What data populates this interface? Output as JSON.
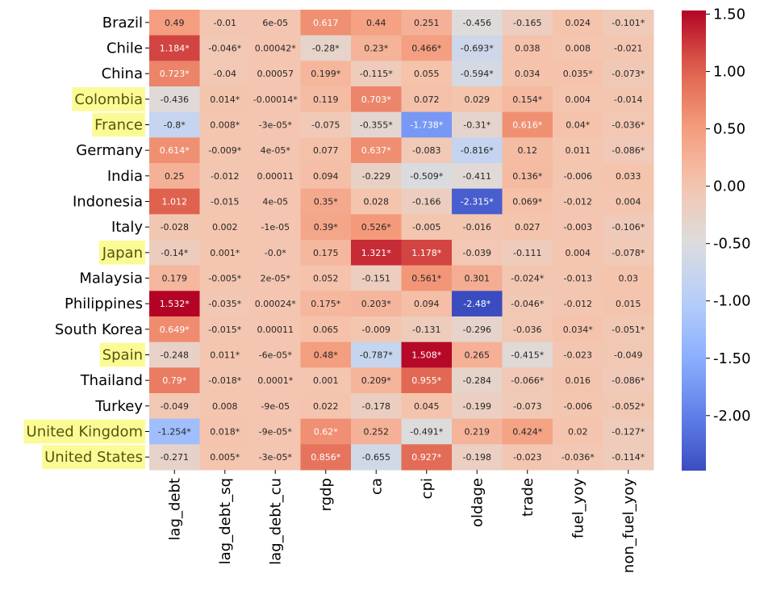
{
  "chart_data": {
    "type": "heatmap",
    "rows": [
      "Brazil",
      "Chile",
      "China",
      "Colombia",
      "France",
      "Germany",
      "India",
      "Indonesia",
      "Italy",
      "Japan",
      "Malaysia",
      "Philippines",
      "South Korea",
      "Spain",
      "Thailand",
      "Turkey",
      "United Kingdom",
      "United States"
    ],
    "columns": [
      "lag_debt",
      "lag_debt_sq",
      "lag_debt_cu",
      "rgdp",
      "ca",
      "cpi",
      "oldage",
      "trade",
      "fuel_yoy",
      "non_fuel_yoy"
    ],
    "values": [
      [
        0.49,
        -0.01,
        6e-05,
        0.617,
        0.44,
        0.251,
        -0.456,
        -0.165,
        0.024,
        -0.101
      ],
      [
        1.184,
        -0.046,
        0.00042,
        -0.28,
        0.23,
        0.466,
        -0.693,
        0.038,
        0.008,
        -0.021
      ],
      [
        0.723,
        -0.04,
        0.00057,
        0.199,
        -0.115,
        0.055,
        -0.594,
        0.034,
        0.035,
        -0.073
      ],
      [
        -0.436,
        0.014,
        -0.00014,
        0.119,
        0.703,
        0.072,
        0.029,
        0.154,
        0.004,
        -0.014
      ],
      [
        -0.8,
        0.008,
        -3e-05,
        -0.075,
        -0.355,
        -1.738,
        -0.31,
        0.616,
        0.04,
        -0.036
      ],
      [
        0.614,
        -0.009,
        4e-05,
        0.077,
        0.637,
        -0.083,
        -0.816,
        0.12,
        0.011,
        -0.086
      ],
      [
        0.25,
        -0.012,
        0.00011,
        0.094,
        -0.229,
        -0.509,
        -0.411,
        0.136,
        -0.006,
        0.033
      ],
      [
        1.012,
        -0.015,
        4e-05,
        0.35,
        0.028,
        -0.166,
        -2.315,
        0.069,
        -0.012,
        0.004
      ],
      [
        -0.028,
        0.002,
        -1e-05,
        0.39,
        0.526,
        -0.005,
        -0.016,
        0.027,
        -0.003,
        -0.106
      ],
      [
        -0.14,
        0.001,
        0,
        0.175,
        1.321,
        1.178,
        -0.039,
        -0.111,
        0.004,
        -0.078
      ],
      [
        0.179,
        -0.005,
        2e-05,
        0.052,
        -0.151,
        0.561,
        0.301,
        -0.024,
        -0.013,
        0.03
      ],
      [
        1.532,
        -0.035,
        0.00024,
        0.175,
        0.203,
        0.094,
        -2.48,
        -0.046,
        -0.012,
        0.015
      ],
      [
        0.649,
        -0.015,
        0.00011,
        0.065,
        -0.009,
        -0.131,
        -0.296,
        -0.036,
        0.034,
        -0.051
      ],
      [
        -0.248,
        0.011,
        -6e-05,
        0.48,
        -0.787,
        1.508,
        0.265,
        -0.415,
        -0.023,
        -0.049
      ],
      [
        0.79,
        -0.018,
        0.0001,
        0.001,
        0.209,
        0.955,
        -0.284,
        -0.066,
        0.016,
        -0.086
      ],
      [
        -0.049,
        0.008,
        -9e-05,
        0.022,
        -0.178,
        0.045,
        -0.199,
        -0.073,
        -0.006,
        -0.052
      ],
      [
        -1.254,
        0.018,
        -9e-05,
        0.62,
        0.252,
        -0.491,
        0.219,
        0.424,
        0.02,
        -0.127
      ],
      [
        -0.271,
        0.005,
        -3e-05,
        0.856,
        -0.655,
        0.927,
        -0.198,
        -0.023,
        -0.036,
        -0.114
      ]
    ],
    "value_labels": [
      [
        "0.49",
        "-0.01",
        "6e-05",
        "0.617",
        "0.44",
        "0.251",
        "-0.456",
        "-0.165",
        "0.024",
        "-0.101*"
      ],
      [
        "1.184*",
        "-0.046*",
        "0.00042*",
        "-0.28*",
        "0.23*",
        "0.466*",
        "-0.693*",
        "0.038",
        "0.008",
        "-0.021"
      ],
      [
        "0.723*",
        "-0.04",
        "0.00057",
        "0.199*",
        "-0.115*",
        "0.055",
        "-0.594*",
        "0.034",
        "0.035*",
        "-0.073*"
      ],
      [
        "-0.436",
        "0.014*",
        "-0.00014*",
        "0.119",
        "0.703*",
        "0.072",
        "0.029",
        "0.154*",
        "0.004",
        "-0.014"
      ],
      [
        "-0.8*",
        "0.008*",
        "-3e-05*",
        "-0.075",
        "-0.355*",
        "-1.738*",
        "-0.31*",
        "0.616*",
        "0.04*",
        "-0.036*"
      ],
      [
        "0.614*",
        "-0.009*",
        "4e-05*",
        "0.077",
        "0.637*",
        "-0.083",
        "-0.816*",
        "0.12",
        "0.011",
        "-0.086*"
      ],
      [
        "0.25",
        "-0.012",
        "0.00011",
        "0.094",
        "-0.229",
        "-0.509*",
        "-0.411",
        "0.136*",
        "-0.006",
        "0.033"
      ],
      [
        "1.012",
        "-0.015",
        "4e-05",
        "0.35*",
        "0.028",
        "-0.166",
        "-2.315*",
        "0.069*",
        "-0.012",
        "0.004"
      ],
      [
        "-0.028",
        "0.002",
        "-1e-05",
        "0.39*",
        "0.526*",
        "-0.005",
        "-0.016",
        "0.027",
        "-0.003",
        "-0.106*"
      ],
      [
        "-0.14*",
        "0.001*",
        "-0.0*",
        "0.175",
        "1.321*",
        "1.178*",
        "-0.039",
        "-0.111",
        "0.004",
        "-0.078*"
      ],
      [
        "0.179",
        "-0.005*",
        "2e-05*",
        "0.052",
        "-0.151",
        "0.561*",
        "0.301",
        "-0.024*",
        "-0.013",
        "0.03"
      ],
      [
        "1.532*",
        "-0.035*",
        "0.00024*",
        "0.175*",
        "0.203*",
        "0.094",
        "-2.48*",
        "-0.046*",
        "-0.012",
        "0.015"
      ],
      [
        "0.649*",
        "-0.015*",
        "0.00011",
        "0.065",
        "-0.009",
        "-0.131",
        "-0.296",
        "-0.036",
        "0.034*",
        "-0.051*"
      ],
      [
        "-0.248",
        "0.011*",
        "-6e-05*",
        "0.48*",
        "-0.787*",
        "1.508*",
        "0.265",
        "-0.415*",
        "-0.023",
        "-0.049"
      ],
      [
        "0.79*",
        "-0.018*",
        "0.0001*",
        "0.001",
        "0.209*",
        "0.955*",
        "-0.284",
        "-0.066*",
        "0.016",
        "-0.086*"
      ],
      [
        "-0.049",
        "0.008",
        "-9e-05",
        "0.022",
        "-0.178",
        "0.045",
        "-0.199",
        "-0.073",
        "-0.006",
        "-0.052*"
      ],
      [
        "-1.254*",
        "0.018*",
        "-9e-05*",
        "0.62*",
        "0.252",
        "-0.491*",
        "0.219",
        "0.424*",
        "0.02",
        "-0.127*"
      ],
      [
        "-0.271",
        "0.005*",
        "-3e-05*",
        "0.856*",
        "-0.655",
        "0.927*",
        "-0.198",
        "-0.023",
        "-0.036*",
        "-0.114*"
      ]
    ],
    "colormap": "coolwarm",
    "clim": [
      -2.48,
      1.532
    ],
    "cticks": [
      {
        "value": 1.5,
        "label": "1.50"
      },
      {
        "value": 1,
        "label": "1.00"
      },
      {
        "value": 0.5,
        "label": "0.50"
      },
      {
        "value": 0,
        "label": "0.00"
      },
      {
        "value": -0.5,
        "label": "-0.50"
      },
      {
        "value": -1,
        "label": "-1.00"
      },
      {
        "value": -1.5,
        "label": "-1.50"
      },
      {
        "value": -2,
        "label": "-2.00"
      }
    ],
    "highlighted_rows": [
      3,
      4,
      9,
      13,
      16,
      17
    ],
    "highlight_color": "#fbfb96"
  }
}
